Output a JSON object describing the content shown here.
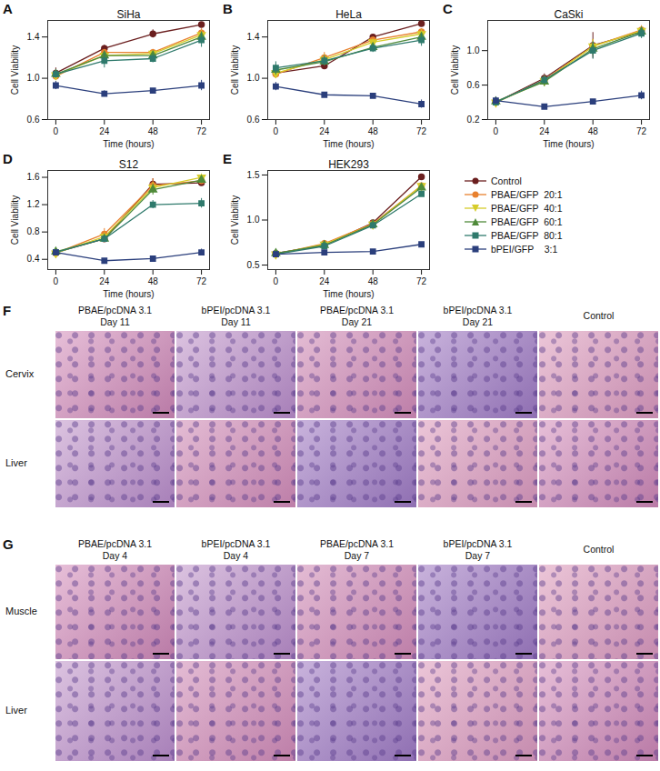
{
  "chart_data": [
    {
      "type": "line",
      "panel": "A",
      "title": "SiHa",
      "xlabel": "Time (hours)",
      "ylabel": "Cell Viability",
      "x": [
        0,
        24,
        48,
        72
      ],
      "xlim": [
        -4,
        76
      ],
      "xticks": [
        0,
        24,
        48,
        72
      ],
      "ylim": [
        0.6,
        1.56
      ],
      "yticks": [
        0.6,
        {
          "value": 1.0,
          "label": "1.0"
        },
        1.4
      ],
      "grid": false,
      "series": [
        {
          "name": "Control",
          "color": "#6b1f1f",
          "marker": "circle",
          "values": [
            1.05,
            1.29,
            1.43,
            1.52
          ],
          "errors": [
            0.05,
            0.03,
            0.04,
            0.02
          ]
        },
        {
          "name": "PBAE/GFP  20:1",
          "color": "#e8812e",
          "marker": "circle",
          "values": [
            1.02,
            1.25,
            1.25,
            1.44
          ],
          "errors": [
            0.04,
            0.03,
            0.03,
            0.04
          ]
        },
        {
          "name": "PBAE/GFP  40:1",
          "color": "#d6cc2a",
          "marker": "triangle_down",
          "values": [
            1.03,
            1.22,
            1.24,
            1.42
          ],
          "errors": [
            0.04,
            0.04,
            0.03,
            0.04
          ]
        },
        {
          "name": "PBAE/GFP  60:1",
          "color": "#4f8a3a",
          "marker": "triangle",
          "values": [
            1.04,
            1.22,
            1.22,
            1.4
          ],
          "errors": [
            0.03,
            0.03,
            0.03,
            0.05
          ]
        },
        {
          "name": "PBAE/GFP  80:1",
          "color": "#2f7a6c",
          "marker": "square",
          "values": [
            1.04,
            1.17,
            1.19,
            1.37
          ],
          "errors": [
            0.04,
            0.07,
            0.04,
            0.07
          ]
        },
        {
          "name": "bPEI/GFP    3:1",
          "color": "#2b3f7c",
          "marker": "square",
          "values": [
            0.93,
            0.85,
            0.88,
            0.93
          ],
          "errors": [
            0.04,
            0.03,
            0.02,
            0.05
          ]
        }
      ]
    },
    {
      "type": "line",
      "panel": "B",
      "title": "HeLa",
      "xlabel": "Time (hours)",
      "ylabel": "Cell Viability",
      "x": [
        0,
        24,
        48,
        72
      ],
      "xlim": [
        -4,
        76
      ],
      "xticks": [
        0,
        24,
        48,
        72
      ],
      "ylim": [
        0.6,
        1.56
      ],
      "yticks": [
        0.6,
        {
          "value": 1.0,
          "label": "1.0"
        },
        1.4
      ],
      "grid": false,
      "series": [
        {
          "name": "Control",
          "color": "#6b1f1f",
          "marker": "circle",
          "values": [
            1.05,
            1.12,
            1.4,
            1.53
          ],
          "errors": [
            0.05,
            0.03,
            0.02,
            0.02
          ]
        },
        {
          "name": "PBAE/GFP  20:1",
          "color": "#e8812e",
          "marker": "circle",
          "values": [
            1.04,
            1.2,
            1.37,
            1.45
          ],
          "errors": [
            0.04,
            0.05,
            0.03,
            0.03
          ]
        },
        {
          "name": "PBAE/GFP  40:1",
          "color": "#d6cc2a",
          "marker": "triangle_down",
          "values": [
            1.05,
            1.18,
            1.35,
            1.43
          ],
          "errors": [
            0.05,
            0.05,
            0.03,
            0.04
          ]
        },
        {
          "name": "PBAE/GFP  60:1",
          "color": "#4f8a3a",
          "marker": "triangle",
          "values": [
            1.08,
            1.16,
            1.3,
            1.4
          ],
          "errors": [
            0.05,
            0.04,
            0.04,
            0.04
          ]
        },
        {
          "name": "PBAE/GFP  80:1",
          "color": "#2f7a6c",
          "marker": "square",
          "values": [
            1.1,
            1.17,
            1.29,
            1.37
          ],
          "errors": [
            0.06,
            0.05,
            0.04,
            0.06
          ]
        },
        {
          "name": "bPEI/GFP    3:1",
          "color": "#2b3f7c",
          "marker": "square",
          "values": [
            0.92,
            0.84,
            0.83,
            0.75
          ],
          "errors": [
            0.04,
            0.02,
            0.02,
            0.04
          ]
        }
      ]
    },
    {
      "type": "line",
      "panel": "C",
      "title": "CaSki",
      "xlabel": "Time (hours)",
      "ylabel": "Cell Viability",
      "x": [
        0,
        24,
        48,
        72
      ],
      "xlim": [
        -4,
        76
      ],
      "xticks": [
        0,
        24,
        48,
        72
      ],
      "ylim": [
        0.2,
        1.35
      ],
      "yticks": [
        0.2,
        0.6,
        {
          "value": 1.0,
          "label": "1.0"
        }
      ],
      "grid": false,
      "series": [
        {
          "name": "Control",
          "color": "#6b1f1f",
          "marker": "circle",
          "values": [
            0.4,
            0.68,
            1.06,
            1.22
          ],
          "errors": [
            0.04,
            0.05,
            0.15,
            0.05
          ]
        },
        {
          "name": "PBAE/GFP  20:1",
          "color": "#e8812e",
          "marker": "circle",
          "values": [
            0.4,
            0.66,
            1.05,
            1.24
          ],
          "errors": [
            0.04,
            0.05,
            0.08,
            0.05
          ]
        },
        {
          "name": "PBAE/GFP  40:1",
          "color": "#d6cc2a",
          "marker": "triangle_down",
          "values": [
            0.4,
            0.65,
            1.05,
            1.23
          ],
          "errors": [
            0.04,
            0.05,
            0.08,
            0.05
          ]
        },
        {
          "name": "PBAE/GFP  60:1",
          "color": "#4f8a3a",
          "marker": "triangle",
          "values": [
            0.41,
            0.64,
            1.02,
            1.22
          ],
          "errors": [
            0.04,
            0.06,
            0.08,
            0.05
          ]
        },
        {
          "name": "PBAE/GFP  80:1",
          "color": "#2f7a6c",
          "marker": "square",
          "values": [
            0.4,
            0.66,
            1.0,
            1.2
          ],
          "errors": [
            0.04,
            0.05,
            0.1,
            0.06
          ]
        },
        {
          "name": "bPEI/GFP    3:1",
          "color": "#2b3f7c",
          "marker": "square",
          "values": [
            0.42,
            0.35,
            0.41,
            0.48
          ],
          "errors": [
            0.04,
            0.02,
            0.02,
            0.05
          ]
        }
      ]
    },
    {
      "type": "line",
      "panel": "D",
      "title": "S12",
      "xlabel": "Time (hours)",
      "ylabel": "Cell Viability",
      "x": [
        0,
        24,
        48,
        72
      ],
      "xlim": [
        -4,
        76
      ],
      "xticks": [
        0,
        24,
        48,
        72
      ],
      "ylim": [
        0.25,
        1.7
      ],
      "yticks": [
        0.4,
        0.8,
        1.2,
        1.6
      ],
      "grid": false,
      "series": [
        {
          "name": "Control",
          "color": "#6b1f1f",
          "marker": "circle",
          "values": [
            0.5,
            0.7,
            1.5,
            1.52
          ],
          "errors": [
            0.03,
            0.04,
            0.08,
            0.04
          ]
        },
        {
          "name": "PBAE/GFP  20:1",
          "color": "#e8812e",
          "marker": "circle",
          "values": [
            0.49,
            0.77,
            1.48,
            1.55
          ],
          "errors": [
            0.03,
            0.08,
            0.1,
            0.05
          ]
        },
        {
          "name": "PBAE/GFP  40:1",
          "color": "#d6cc2a",
          "marker": "triangle_down",
          "values": [
            0.49,
            0.73,
            1.45,
            1.6
          ],
          "errors": [
            0.03,
            0.06,
            0.08,
            0.05
          ]
        },
        {
          "name": "PBAE/GFP  60:1",
          "color": "#4f8a3a",
          "marker": "triangle",
          "values": [
            0.51,
            0.7,
            1.42,
            1.56
          ],
          "errors": [
            0.03,
            0.05,
            0.08,
            0.05
          ]
        },
        {
          "name": "PBAE/GFP  80:1",
          "color": "#2f7a6c",
          "marker": "square",
          "values": [
            0.5,
            0.7,
            1.2,
            1.22
          ],
          "errors": [
            0.03,
            0.05,
            0.06,
            0.07
          ]
        },
        {
          "name": "bPEI/GFP    3:1",
          "color": "#2b3f7c",
          "marker": "square",
          "values": [
            0.5,
            0.38,
            0.41,
            0.5
          ],
          "errors": [
            0.03,
            0.02,
            0.02,
            0.05
          ]
        }
      ]
    },
    {
      "type": "line",
      "panel": "E",
      "title": "HEK293",
      "xlabel": "Time (hours)",
      "ylabel": "Cell Viability",
      "x": [
        0,
        24,
        48,
        72
      ],
      "xlim": [
        -4,
        76
      ],
      "xticks": [
        0,
        24,
        48,
        72
      ],
      "ylim": [
        0.45,
        1.55
      ],
      "yticks": [
        0.5,
        {
          "value": 1.0,
          "label": "1.0"
        },
        1.5
      ],
      "grid": false,
      "legend": "right",
      "series": [
        {
          "name": "Control",
          "color": "#6b1f1f",
          "marker": "circle",
          "values": [
            0.63,
            0.72,
            0.97,
            1.48
          ],
          "errors": [
            0.02,
            0.02,
            0.02,
            0.02
          ]
        },
        {
          "name": "PBAE/GFP  20:1",
          "color": "#e8812e",
          "marker": "circle",
          "values": [
            0.62,
            0.74,
            0.96,
            1.38
          ],
          "errors": [
            0.02,
            0.02,
            0.02,
            0.02
          ]
        },
        {
          "name": "PBAE/GFP  40:1",
          "color": "#d6cc2a",
          "marker": "triangle_down",
          "values": [
            0.62,
            0.73,
            0.95,
            1.38
          ],
          "errors": [
            0.02,
            0.02,
            0.02,
            0.02
          ]
        },
        {
          "name": "PBAE/GFP  60:1",
          "color": "#4f8a3a",
          "marker": "triangle",
          "values": [
            0.63,
            0.72,
            0.95,
            1.36
          ],
          "errors": [
            0.02,
            0.02,
            0.02,
            0.02
          ]
        },
        {
          "name": "PBAE/GFP  80:1",
          "color": "#2f7a6c",
          "marker": "square",
          "values": [
            0.62,
            0.71,
            0.94,
            1.29
          ],
          "errors": [
            0.02,
            0.02,
            0.02,
            0.02
          ]
        },
        {
          "name": "bPEI/GFP    3:1",
          "color": "#2b3f7c",
          "marker": "square",
          "values": [
            0.62,
            0.64,
            0.65,
            0.73
          ],
          "errors": [
            0.02,
            0.02,
            0.02,
            0.02
          ]
        }
      ]
    }
  ],
  "histology": [
    {
      "panel": "F",
      "columns": [
        [
          "PBAE/pcDNA 3.1",
          "Day 11"
        ],
        [
          "bPEI/pcDNA 3.1",
          "Day 11"
        ],
        [
          "PBAE/pcDNA 3.1",
          "Day 21"
        ],
        [
          "bPEI/pcDNA 3.1",
          "Day 21"
        ],
        [
          "Control"
        ]
      ],
      "rows": [
        "Cervix",
        "Liver"
      ]
    },
    {
      "panel": "G",
      "columns": [
        [
          "PBAE/pcDNA 3.1",
          "Day 4"
        ],
        [
          "bPEI/pcDNA 3.1",
          "Day 4"
        ],
        [
          "PBAE/pcDNA 3.1",
          "Day 7"
        ],
        [
          "bPEI/pcDNA 3.1",
          "Day 7"
        ],
        [
          "Control"
        ]
      ],
      "rows": [
        "Muscle",
        "Liver"
      ]
    }
  ]
}
